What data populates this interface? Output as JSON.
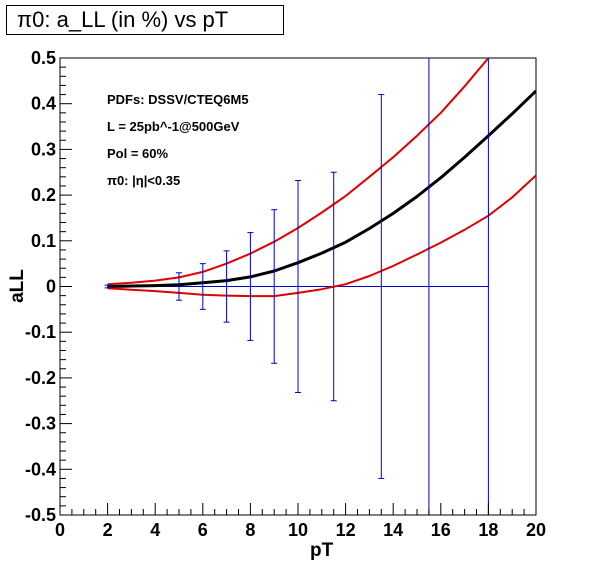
{
  "title": "π0: a_LL (in %) vs pT",
  "chart_data": {
    "type": "line",
    "title": "π0: a_LL (in %) vs pT",
    "xlabel": "pT",
    "ylabel": "aLL",
    "xlim": [
      0,
      20
    ],
    "ylim": [
      -0.5,
      0.5
    ],
    "x_ticks": [
      "0",
      "2",
      "4",
      "6",
      "8",
      "10",
      "12",
      "14",
      "16",
      "18",
      "20"
    ],
    "y_ticks": [
      "-0.5",
      "-0.4",
      "-0.3",
      "-0.2",
      "-0.1",
      "0",
      "0.1",
      "0.2",
      "0.3",
      "0.4",
      "0.5"
    ],
    "grid": false,
    "annotations": [
      "PDFs: DSSV/CTEQ6M5",
      "L = 25pb^-1@500GeV",
      "Pol = 60%",
      "π0: |η|<0.35"
    ],
    "series": [
      {
        "role": "central",
        "color": "#000000",
        "x": [
          2,
          3,
          4,
          5,
          6,
          7,
          8,
          9,
          10,
          11,
          12,
          13,
          14,
          15,
          16,
          17,
          18,
          19,
          20
        ],
        "y": [
          0.0,
          0.001,
          0.002,
          0.004,
          0.008,
          0.013,
          0.021,
          0.034,
          0.052,
          0.073,
          0.097,
          0.127,
          0.16,
          0.197,
          0.238,
          0.283,
          0.33,
          0.378,
          0.428
        ]
      },
      {
        "role": "upper",
        "color": "#e00000",
        "x": [
          2,
          3,
          4,
          5,
          6,
          7,
          8,
          9,
          10,
          11,
          12,
          13,
          14,
          15,
          16,
          17,
          18
        ],
        "y": [
          0.005,
          0.008,
          0.013,
          0.02,
          0.032,
          0.05,
          0.072,
          0.098,
          0.128,
          0.162,
          0.198,
          0.24,
          0.283,
          0.33,
          0.38,
          0.438,
          0.5
        ]
      },
      {
        "role": "lower",
        "color": "#e00000",
        "x": [
          2,
          3,
          4,
          5,
          6,
          7,
          8,
          9,
          10,
          11,
          12,
          13,
          14,
          15,
          16,
          17,
          18,
          19,
          20
        ],
        "y": [
          -0.004,
          -0.007,
          -0.01,
          -0.014,
          -0.018,
          -0.02,
          -0.021,
          -0.021,
          -0.014,
          -0.006,
          0.005,
          0.023,
          0.045,
          0.07,
          0.096,
          0.124,
          0.155,
          0.195,
          0.243
        ]
      }
    ],
    "error_bars": {
      "color": "#0000cc",
      "points": [
        {
          "x": 2,
          "y": 0,
          "err": 0.003
        },
        {
          "x": 5,
          "y": 0,
          "err": 0.03
        },
        {
          "x": 6,
          "y": 0,
          "err": 0.05
        },
        {
          "x": 7,
          "y": 0,
          "err": 0.078
        },
        {
          "x": 8,
          "y": 0,
          "err": 0.118
        },
        {
          "x": 9,
          "y": 0,
          "err": 0.168
        },
        {
          "x": 10,
          "y": 0,
          "err": 0.232
        },
        {
          "x": 11.5,
          "y": 0,
          "err": 0.25
        },
        {
          "x": 13.5,
          "y": 0,
          "err": 0.42
        },
        {
          "x": 15.5,
          "y": 0,
          "err": 0.95
        },
        {
          "x": 18,
          "y": 0,
          "err": 0.95
        }
      ]
    },
    "baseline": {
      "y": 0,
      "x_range": [
        2,
        18
      ],
      "color": "#0000cc"
    }
  }
}
